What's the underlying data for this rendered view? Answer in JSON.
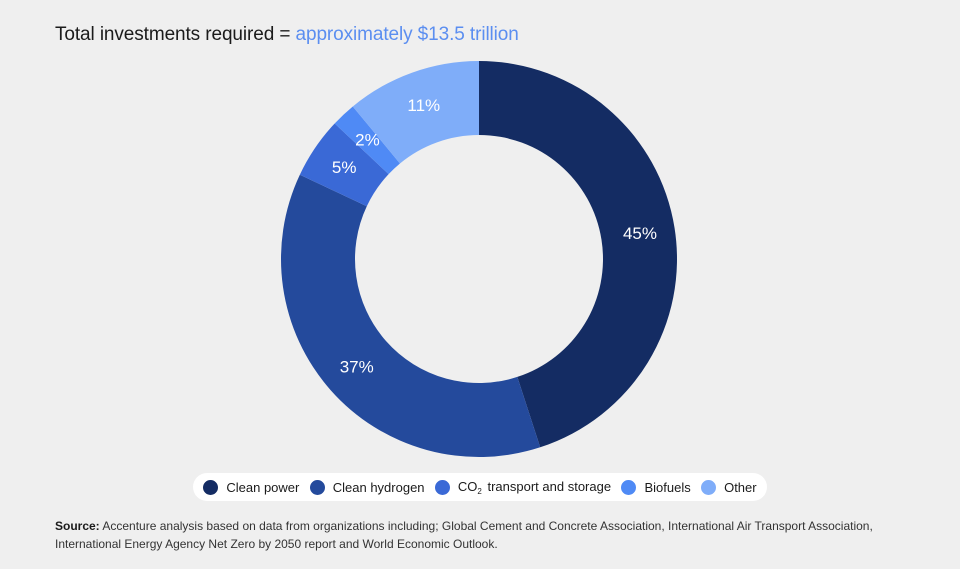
{
  "title": {
    "prefix": "Total investments required = ",
    "highlight": "approximately $13.5 trillion",
    "highlight_color": "#5b8ef0"
  },
  "chart_data": {
    "type": "pie",
    "donut": true,
    "slices": [
      {
        "label": "Clean power",
        "value": 45,
        "display": "45%",
        "color": "#142c63"
      },
      {
        "label": "Clean hydrogen",
        "value": 37,
        "display": "37%",
        "color": "#244a9c"
      },
      {
        "label": "CO2 transport and storage",
        "value": 5,
        "display": "5%",
        "color": "#3a69d6"
      },
      {
        "label": "Biofuels",
        "value": 2,
        "display": "2%",
        "color": "#4f8af5"
      },
      {
        "label": "Other",
        "value": 11,
        "display": "11%",
        "color": "#7fadf9"
      }
    ],
    "legend_placement": "bottom"
  },
  "legend": [
    {
      "prefix": "Clean power",
      "sub": "",
      "suffix": "",
      "color": "#142c63"
    },
    {
      "prefix": "Clean hydrogen",
      "sub": "",
      "suffix": "",
      "color": "#244a9c"
    },
    {
      "prefix": "CO",
      "sub": "2",
      "suffix": " transport and storage",
      "color": "#3a69d6"
    },
    {
      "prefix": "Biofuels",
      "sub": "",
      "suffix": "",
      "color": "#4f8af5"
    },
    {
      "prefix": "Other",
      "sub": "",
      "suffix": "",
      "color": "#7fadf9"
    }
  ],
  "source": {
    "label": "Source:",
    "text": " Accenture analysis based on data from organizations including; Global Cement and Concrete Association, International Air Transport Association, International Energy Agency Net Zero by 2050 report and World Economic Outlook."
  },
  "colors": {
    "background": "#efefef",
    "donut_hole": "#efefef"
  }
}
